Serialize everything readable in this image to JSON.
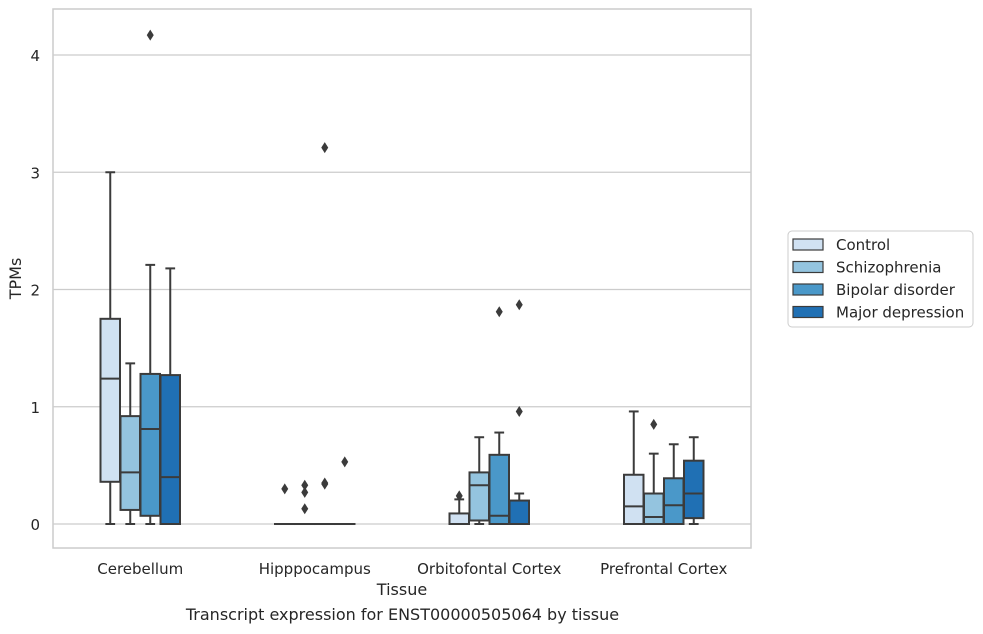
{
  "chart_data": {
    "type": "box",
    "title": "",
    "xlabel": "Tissue",
    "ylabel": "TPMs",
    "caption": "Transcript expression for ENST00000505064 by tissue",
    "ylim": [
      -0.2,
      4.38
    ],
    "yticks": [
      0,
      1,
      2,
      3,
      4
    ],
    "grid": "horizontal",
    "legend": "right",
    "categories": [
      "Cerebellum",
      "Hipppocampus",
      "Orbitofontal Cortex",
      "Prefrontal Cortex"
    ],
    "series": [
      {
        "name": "Control",
        "color": "#d0e1f2",
        "boxes": [
          {
            "whislo": 0.0,
            "q1": 0.36,
            "median": 1.24,
            "q3": 1.75,
            "whishi": 3.0,
            "fliers": []
          },
          {
            "whislo": 0.0,
            "q1": 0.0,
            "median": 0.0,
            "q3": 0.0,
            "whishi": 0.0,
            "fliers": [
              0.3
            ]
          },
          {
            "whislo": 0.0,
            "q1": 0.0,
            "median": 0.0,
            "q3": 0.09,
            "whishi": 0.21,
            "fliers": [
              0.24
            ]
          },
          {
            "whislo": 0.0,
            "q1": 0.0,
            "median": 0.15,
            "q3": 0.42,
            "whishi": 0.96,
            "fliers": []
          }
        ]
      },
      {
        "name": "Schizophrenia",
        "color": "#94c4df",
        "boxes": [
          {
            "whislo": 0.0,
            "q1": 0.12,
            "median": 0.44,
            "q3": 0.92,
            "whishi": 1.37,
            "fliers": []
          },
          {
            "whislo": 0.0,
            "q1": 0.0,
            "median": 0.0,
            "q3": 0.0,
            "whishi": 0.0,
            "fliers": [
              0.13,
              0.27,
              0.33
            ]
          },
          {
            "whislo": 0.0,
            "q1": 0.03,
            "median": 0.33,
            "q3": 0.44,
            "whishi": 0.74,
            "fliers": []
          },
          {
            "whislo": 0.0,
            "q1": 0.0,
            "median": 0.06,
            "q3": 0.26,
            "whishi": 0.6,
            "fliers": [
              0.85
            ]
          }
        ]
      },
      {
        "name": "Bipolar disorder",
        "color": "#4a98c9",
        "boxes": [
          {
            "whislo": 0.0,
            "q1": 0.07,
            "median": 0.81,
            "q3": 1.28,
            "whishi": 2.21,
            "fliers": [
              4.17
            ]
          },
          {
            "whislo": 0.0,
            "q1": 0.0,
            "median": 0.0,
            "q3": 0.0,
            "whishi": 0.0,
            "fliers": [
              0.34,
              0.35,
              3.21
            ]
          },
          {
            "whislo": 0.0,
            "q1": 0.0,
            "median": 0.07,
            "q3": 0.59,
            "whishi": 0.78,
            "fliers": [
              1.81
            ]
          },
          {
            "whislo": 0.0,
            "q1": 0.0,
            "median": 0.16,
            "q3": 0.39,
            "whishi": 0.68,
            "fliers": []
          }
        ]
      },
      {
        "name": "Major depression",
        "color": "#2070b4",
        "boxes": [
          {
            "whislo": 0.0,
            "q1": 0.0,
            "median": 0.4,
            "q3": 1.27,
            "whishi": 2.18,
            "fliers": []
          },
          {
            "whislo": 0.0,
            "q1": 0.0,
            "median": 0.0,
            "q3": 0.0,
            "whishi": 0.0,
            "fliers": [
              0.53
            ]
          },
          {
            "whislo": 0.0,
            "q1": 0.0,
            "median": 0.0,
            "q3": 0.2,
            "whishi": 0.26,
            "fliers": [
              0.96,
              1.87
            ]
          },
          {
            "whislo": 0.0,
            "q1": 0.05,
            "median": 0.26,
            "q3": 0.54,
            "whishi": 0.74,
            "fliers": []
          }
        ]
      }
    ]
  }
}
